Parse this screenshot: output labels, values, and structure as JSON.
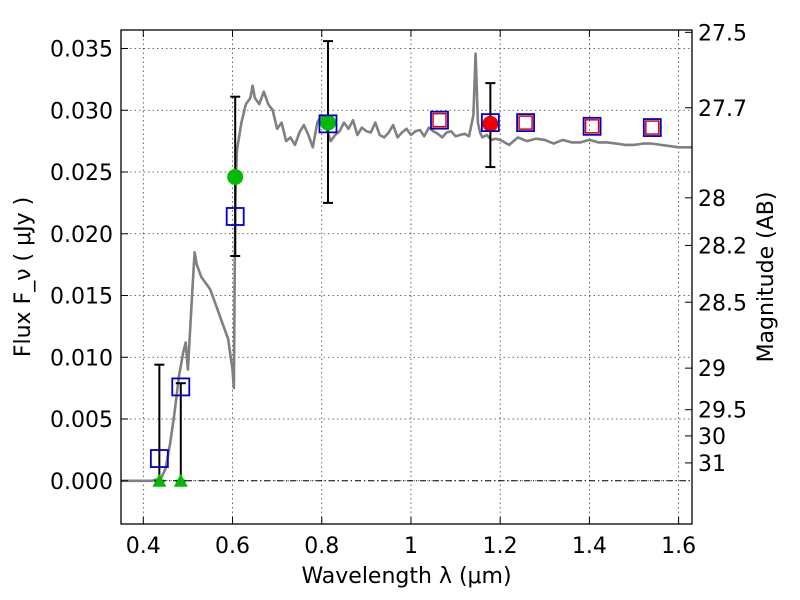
{
  "chart_data": {
    "type": "scatter",
    "xlabel": "Wavelength  λ (μm)",
    "ylabel_left": "Flux  F_ν  ( μJy )",
    "ylabel_right": "Magnitude (AB)",
    "xlim": [
      0.35,
      1.63
    ],
    "ylim": [
      -0.0035,
      0.0365
    ],
    "x_ticks": [
      0.4,
      0.6,
      0.8,
      1.0,
      1.2,
      1.4,
      1.6
    ],
    "x_tick_labels": [
      "0.4",
      "0.6",
      "0.8",
      "1",
      "1.2",
      "1.4",
      "1.6"
    ],
    "y_ticks": [
      0.0,
      0.005,
      0.01,
      0.015,
      0.02,
      0.025,
      0.03,
      0.035
    ],
    "y_tick_labels": [
      "0.000",
      "0.005",
      "0.010",
      "0.015",
      "0.020",
      "0.025",
      "0.030",
      "0.035"
    ],
    "right_ticks": [
      {
        "mag": 27.5,
        "label": "27.5"
      },
      {
        "mag": 27.7,
        "label": "27.7"
      },
      {
        "mag": 28,
        "label": "28"
      },
      {
        "mag": 28.2,
        "label": "28.2"
      },
      {
        "mag": 28.5,
        "label": "28.5"
      },
      {
        "mag": 29,
        "label": "29"
      },
      {
        "mag": 29.5,
        "label": "29.5"
      },
      {
        "mag": 30,
        "label": "30"
      },
      {
        "mag": 31,
        "label": "31"
      }
    ],
    "grid": true,
    "colors": {
      "model": "#808080",
      "observed_box": "#0000cc",
      "model_box": "#e00000",
      "green_detection": "#00bb00",
      "red_detection": "#ee0000",
      "errorbar": "#000000"
    },
    "model_spectrum": {
      "x": [
        0.35,
        0.42,
        0.44,
        0.45,
        0.46,
        0.47,
        0.48,
        0.49,
        0.495,
        0.5,
        0.51,
        0.515,
        0.52,
        0.53,
        0.54,
        0.55,
        0.56,
        0.57,
        0.58,
        0.59,
        0.6,
        0.603,
        0.605,
        0.607,
        0.61,
        0.62,
        0.63,
        0.64,
        0.645,
        0.65,
        0.66,
        0.67,
        0.68,
        0.69,
        0.7,
        0.71,
        0.72,
        0.73,
        0.74,
        0.75,
        0.76,
        0.77,
        0.78,
        0.79,
        0.8,
        0.81,
        0.82,
        0.83,
        0.84,
        0.85,
        0.86,
        0.87,
        0.88,
        0.89,
        0.9,
        0.91,
        0.92,
        0.93,
        0.94,
        0.95,
        0.96,
        0.97,
        0.98,
        0.99,
        1.0,
        1.01,
        1.02,
        1.03,
        1.04,
        1.05,
        1.06,
        1.07,
        1.08,
        1.09,
        1.1,
        1.11,
        1.12,
        1.13,
        1.14,
        1.145,
        1.15,
        1.155,
        1.16,
        1.17,
        1.18,
        1.19,
        1.2,
        1.22,
        1.24,
        1.26,
        1.28,
        1.3,
        1.32,
        1.34,
        1.36,
        1.38,
        1.4,
        1.42,
        1.44,
        1.46,
        1.48,
        1.5,
        1.52,
        1.54,
        1.56,
        1.58,
        1.6,
        1.63
      ],
      "y": [
        0.0,
        0.0,
        0.0002,
        0.001,
        0.003,
        0.0055,
        0.0085,
        0.0105,
        0.0112,
        0.009,
        0.0155,
        0.0185,
        0.0175,
        0.0165,
        0.016,
        0.0155,
        0.0145,
        0.0135,
        0.0125,
        0.0115,
        0.009,
        0.0075,
        0.018,
        0.024,
        0.0268,
        0.029,
        0.0305,
        0.031,
        0.032,
        0.031,
        0.0305,
        0.0315,
        0.0305,
        0.03,
        0.0285,
        0.029,
        0.0275,
        0.0278,
        0.0272,
        0.0282,
        0.0288,
        0.028,
        0.027,
        0.029,
        0.0296,
        0.0286,
        0.0275,
        0.028,
        0.0283,
        0.029,
        0.0285,
        0.0292,
        0.028,
        0.0286,
        0.0283,
        0.0282,
        0.029,
        0.028,
        0.0278,
        0.0282,
        0.0288,
        0.0278,
        0.0282,
        0.0285,
        0.028,
        0.0283,
        0.0284,
        0.0279,
        0.0286,
        0.0283,
        0.0281,
        0.0278,
        0.0282,
        0.0283,
        0.0279,
        0.028,
        0.0281,
        0.0279,
        0.0296,
        0.0346,
        0.029,
        0.0282,
        0.0278,
        0.028,
        0.0276,
        0.0277,
        0.0276,
        0.0272,
        0.0278,
        0.0275,
        0.0277,
        0.0276,
        0.0273,
        0.0276,
        0.0274,
        0.0274,
        0.0276,
        0.0274,
        0.0274,
        0.0273,
        0.0272,
        0.0272,
        0.0273,
        0.0273,
        0.0272,
        0.0271,
        0.027,
        0.027
      ]
    },
    "observed_points": [
      {
        "x": 0.436,
        "y": 0.0018
      },
      {
        "x": 0.484,
        "y": 0.0076
      },
      {
        "x": 0.606,
        "y": 0.0214
      },
      {
        "x": 0.814,
        "y": 0.0289
      },
      {
        "x": 1.064,
        "y": 0.0292
      },
      {
        "x": 1.178,
        "y": 0.029
      },
      {
        "x": 1.257,
        "y": 0.029
      },
      {
        "x": 1.406,
        "y": 0.0287
      },
      {
        "x": 1.541,
        "y": 0.0286
      }
    ],
    "model_points": [
      {
        "x": 1.064,
        "y": 0.0292
      },
      {
        "x": 1.257,
        "y": 0.029
      },
      {
        "x": 1.406,
        "y": 0.0287
      },
      {
        "x": 1.541,
        "y": 0.0286
      }
    ],
    "green_detections": [
      {
        "x": 0.606,
        "y": 0.0246
      },
      {
        "x": 0.814,
        "y": 0.029
      }
    ],
    "red_detections": [
      {
        "x": 1.178,
        "y": 0.0289
      }
    ],
    "upper_limits": [
      {
        "x": 0.436,
        "y": 0.0
      }
    ],
    "green_triangles": [
      {
        "x": 0.436,
        "y": 0.0
      },
      {
        "x": 0.484,
        "y": 0.0
      }
    ],
    "error_bars": [
      {
        "x": 0.436,
        "low": 0.0,
        "high": 0.0094
      },
      {
        "x": 0.484,
        "low": 0.0,
        "high": 0.0079
      },
      {
        "x": 0.606,
        "low": 0.0182,
        "high": 0.0311
      },
      {
        "x": 0.814,
        "low": 0.0225,
        "high": 0.0356
      },
      {
        "x": 1.178,
        "low": 0.0254,
        "high": 0.0322
      }
    ]
  }
}
